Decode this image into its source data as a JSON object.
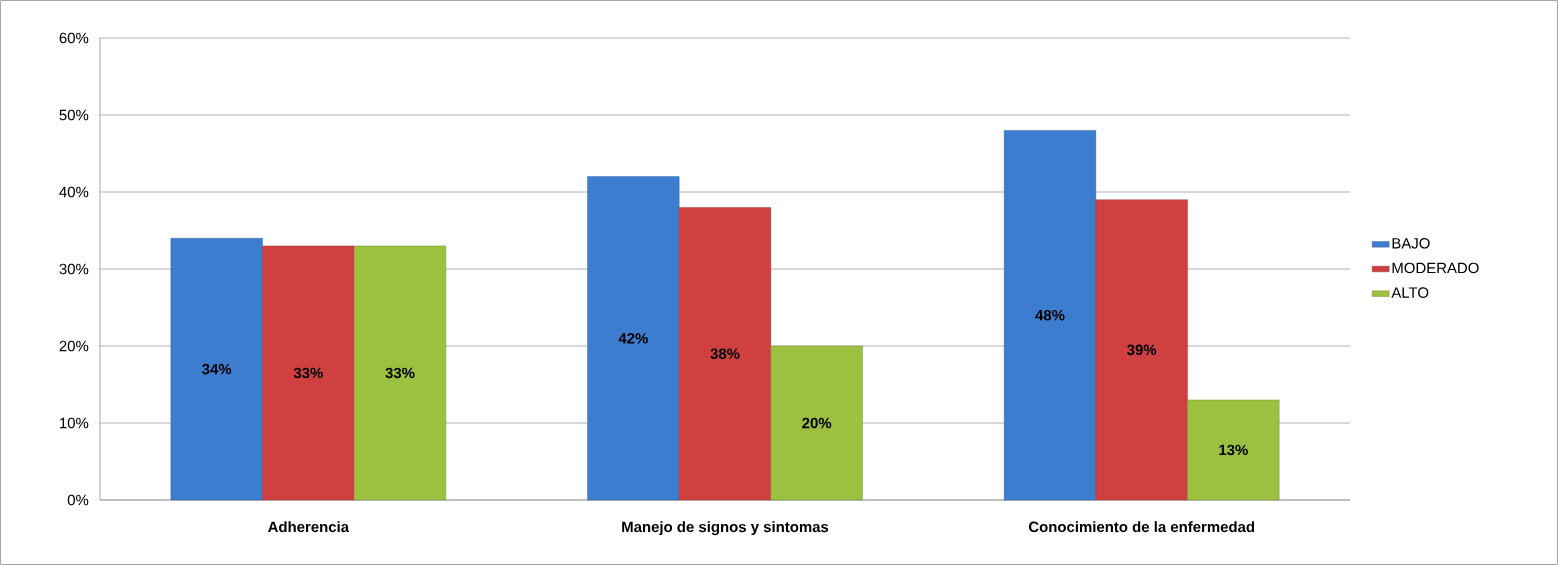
{
  "chart_data": {
    "type": "bar",
    "categories": [
      "Adherencia",
      "Manejo de signos y sintomas",
      "Conocimiento de la enfermedad"
    ],
    "series": [
      {
        "name": "BAJO",
        "color": "#3c7dd0",
        "values": [
          34,
          42,
          48
        ],
        "value_labels": [
          "34%",
          "42%",
          "48%"
        ]
      },
      {
        "name": "MODERADO",
        "color": "#d04040",
        "values": [
          33,
          38,
          39
        ],
        "value_labels": [
          "33%",
          "38%",
          "39%"
        ]
      },
      {
        "name": "ALTO",
        "color": "#9cc040",
        "values": [
          33,
          20,
          13
        ],
        "value_labels": [
          "33%",
          "20%",
          "13%"
        ]
      }
    ],
    "ylim": [
      0,
      60
    ],
    "yticks": [
      {
        "value": 0,
        "label": "0%"
      },
      {
        "value": 10,
        "label": "10%"
      },
      {
        "value": 20,
        "label": "20%"
      },
      {
        "value": 30,
        "label": "30%"
      },
      {
        "value": 40,
        "label": "40%"
      },
      {
        "value": 50,
        "label": "50%"
      },
      {
        "value": 60,
        "label": "60%"
      }
    ],
    "grid": "y",
    "legend": "right"
  }
}
